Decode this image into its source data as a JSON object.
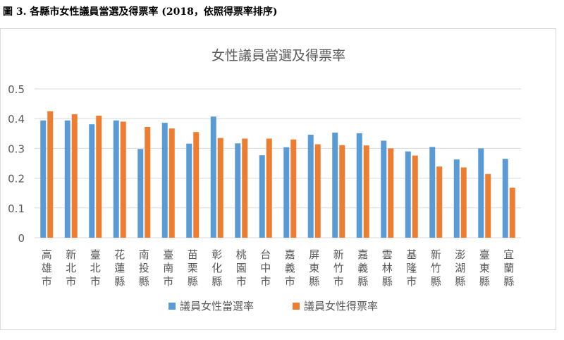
{
  "figure": {
    "caption": "圖 3.  各縣市女性議員當選及得票率  (2018，依照得票率排序)"
  },
  "colors": {
    "series_blue": "#5b9bd5",
    "series_orange": "#ed7d31",
    "grid": "#d9d9d9",
    "text": "#595959"
  },
  "chart_data": {
    "type": "bar",
    "title": "女性議員當選及得票率",
    "xlabel": "",
    "ylabel": "",
    "ylim": [
      0,
      0.5
    ],
    "yticks": [
      "0",
      "0.1",
      "0.2",
      "0.3",
      "0.4",
      "0.5"
    ],
    "grid": true,
    "legend_position": "bottom",
    "categories": [
      "高雄市",
      "新北市",
      "臺北市",
      "花蓮縣",
      "南投縣",
      "臺南市",
      "苗栗縣",
      "彰化縣",
      "桃園市",
      "台中市",
      "嘉義市",
      "屏東縣",
      "新竹市",
      "嘉義縣",
      "雲林縣",
      "基隆市",
      "新竹縣",
      "澎湖縣",
      "臺東縣",
      "宜蘭縣"
    ],
    "series": [
      {
        "name": "議員女性當選率",
        "color": "#5b9bd5",
        "values": [
          0.394,
          0.394,
          0.381,
          0.394,
          0.298,
          0.386,
          0.316,
          0.407,
          0.317,
          0.277,
          0.304,
          0.346,
          0.353,
          0.351,
          0.326,
          0.29,
          0.305,
          0.263,
          0.3,
          0.265
        ]
      },
      {
        "name": "議員女性得票率",
        "color": "#ed7d31",
        "values": [
          0.425,
          0.415,
          0.41,
          0.39,
          0.372,
          0.367,
          0.355,
          0.335,
          0.333,
          0.333,
          0.33,
          0.314,
          0.311,
          0.31,
          0.3,
          0.276,
          0.239,
          0.236,
          0.214,
          0.168
        ]
      }
    ]
  }
}
